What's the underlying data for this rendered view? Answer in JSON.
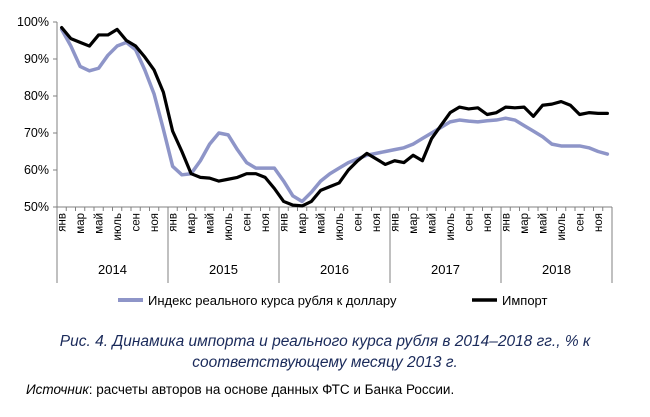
{
  "chart_data": {
    "type": "line",
    "title": "",
    "xlabel": "",
    "ylabel": "",
    "ylim": [
      50,
      100
    ],
    "yticks": [
      "50%",
      "60%",
      "70%",
      "80%",
      "90%",
      "100%"
    ],
    "grid": false,
    "legend_position": "bottom",
    "month_labels": [
      "янв",
      "мар",
      "май",
      "июль",
      "сен",
      "ноя"
    ],
    "year_labels": [
      "2014",
      "2015",
      "2016",
      "2017",
      "2018"
    ],
    "x": [
      "2014-01",
      "2014-02",
      "2014-03",
      "2014-04",
      "2014-05",
      "2014-06",
      "2014-07",
      "2014-08",
      "2014-09",
      "2014-10",
      "2014-11",
      "2014-12",
      "2015-01",
      "2015-02",
      "2015-03",
      "2015-04",
      "2015-05",
      "2015-06",
      "2015-07",
      "2015-08",
      "2015-09",
      "2015-10",
      "2015-11",
      "2015-12",
      "2016-01",
      "2016-02",
      "2016-03",
      "2016-04",
      "2016-05",
      "2016-06",
      "2016-07",
      "2016-08",
      "2016-09",
      "2016-10",
      "2016-11",
      "2016-12",
      "2017-01",
      "2017-02",
      "2017-03",
      "2017-04",
      "2017-05",
      "2017-06",
      "2017-07",
      "2017-08",
      "2017-09",
      "2017-10",
      "2017-11",
      "2017-12",
      "2018-01",
      "2018-02",
      "2018-03",
      "2018-04",
      "2018-05",
      "2018-06",
      "2018-07",
      "2018-08",
      "2018-09",
      "2018-10",
      "2018-11",
      "2018-12"
    ],
    "series": [
      {
        "name": "Индекс реального курса рубля к доллару",
        "color": "#8e95c8",
        "values": [
          98.0,
          93.5,
          88.0,
          86.8,
          87.5,
          91.0,
          93.5,
          94.5,
          92.5,
          87.0,
          80.5,
          71.0,
          61.0,
          58.7,
          59.0,
          62.5,
          67.0,
          70.0,
          69.5,
          65.5,
          62.0,
          60.5,
          60.5,
          60.5,
          57.0,
          53.0,
          51.5,
          54.0,
          57.0,
          59.0,
          60.5,
          62.0,
          63.0,
          64.0,
          64.5,
          65.0,
          65.5,
          66.0,
          67.0,
          68.5,
          70.0,
          71.5,
          73.0,
          73.5,
          73.2,
          73.0,
          73.3,
          73.5,
          74.0,
          73.5,
          72.0,
          70.5,
          69.0,
          67.0,
          66.5,
          66.5,
          66.5,
          66.0,
          65.0,
          64.3
        ]
      },
      {
        "name": "Импорт",
        "color": "#000000",
        "values": [
          98.5,
          95.5,
          94.5,
          93.5,
          96.5,
          96.5,
          98.0,
          95.0,
          93.5,
          90.5,
          87.0,
          81.0,
          70.5,
          65.0,
          59.0,
          58.0,
          57.8,
          57.0,
          57.5,
          58.0,
          59.0,
          59.0,
          58.0,
          55.0,
          51.5,
          50.5,
          50.3,
          51.5,
          54.5,
          55.5,
          56.5,
          60.0,
          62.5,
          64.5,
          63.0,
          61.5,
          62.5,
          62.0,
          64.0,
          62.5,
          68.5,
          72.0,
          75.5,
          77.0,
          76.5,
          76.8,
          75.0,
          75.5,
          77.0,
          76.8,
          77.0,
          74.5,
          77.5,
          77.8,
          78.5,
          77.5,
          75.0,
          75.5,
          75.3,
          75.3
        ]
      }
    ]
  },
  "caption": {
    "line1": "Рис. 4. Динамика импорта и реального курса рубля в 2014–2018 гг., % к",
    "line2": "соответствующему месяцу 2013 г."
  },
  "source": {
    "label": "Источник",
    "text": ": расчеты авторов на основе данных ФТС и Банка России."
  }
}
